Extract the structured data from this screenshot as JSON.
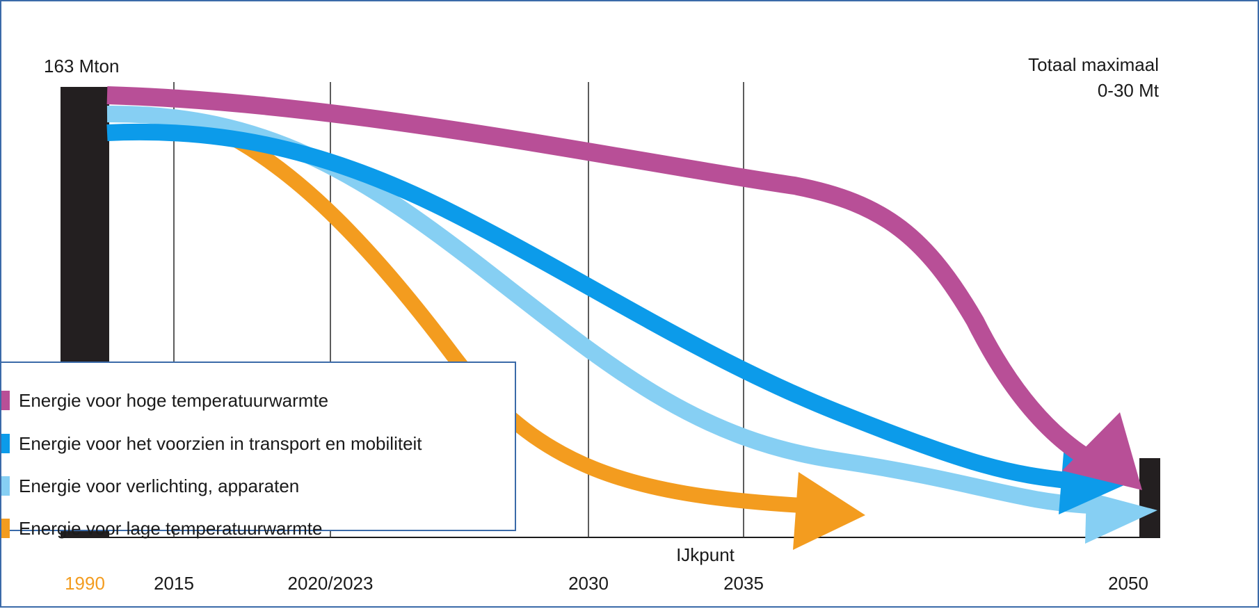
{
  "chart_data": {
    "type": "line",
    "title": "",
    "xlabel": "",
    "ylabel": "",
    "ylim": [
      0,
      163
    ],
    "x_ticks": [
      {
        "label": "1990",
        "color": "#f39c1f"
      },
      {
        "label": "2015",
        "color": "#1a1a1a"
      },
      {
        "label": "2020/2023",
        "color": "#1a1a1a"
      },
      {
        "label": "2030",
        "color": "#1a1a1a"
      },
      {
        "label": "2035",
        "color": "#1a1a1a"
      },
      {
        "label": "2050",
        "color": "#1a1a1a"
      }
    ],
    "annotations": {
      "start_value": "163 Mton",
      "end_line1": "Totaal maximaal",
      "end_line2": "0-30 Mt",
      "milestone": "IJkpunt"
    },
    "legend_position": "bottom-left",
    "series": [
      {
        "name": "Energie voor hoge temperatuurwarmte",
        "color": "#b84f97"
      },
      {
        "name": "Energie voor het voorzien in transport en mobiliteit",
        "color": "#0c9bea"
      },
      {
        "name": "Energie voor verlichting, apparaten",
        "color": "#86cff3"
      },
      {
        "name": "Energie voor lage temperatuurwarmte",
        "color": "#f39c1f"
      }
    ]
  }
}
